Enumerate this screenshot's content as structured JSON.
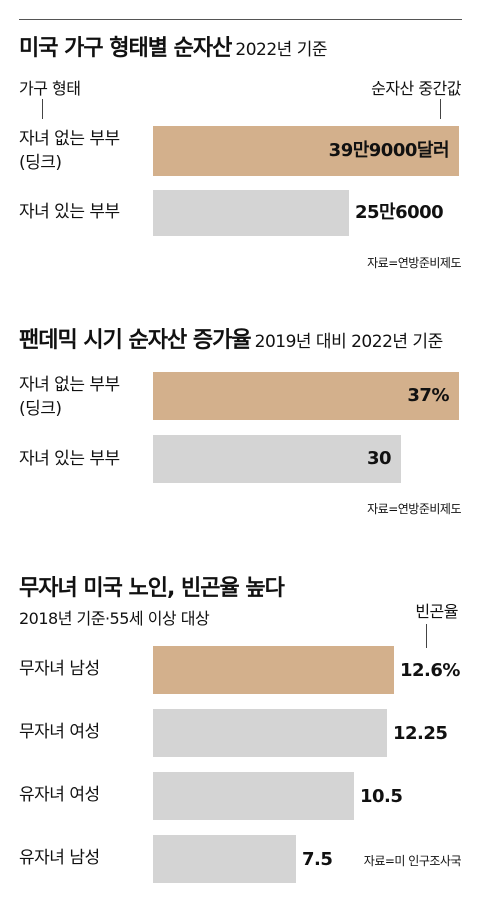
{
  "chart_data": [
    {
      "type": "bar",
      "title": "미국 가구 형태별 순자산",
      "subtitle": "2022년 기준",
      "category_header": "가구 형태",
      "value_header": "순자산 중간값",
      "categories": [
        "자녀 없는 부부\n(딩크)",
        "자녀 있는 부부"
      ],
      "values": [
        399000,
        256000
      ],
      "value_labels": [
        "39만9000달러",
        "25만6000"
      ],
      "highlight_color": "#d3b08c",
      "base_color": "#d4d4d4",
      "source": "자료=연방준비제도"
    },
    {
      "type": "bar",
      "title": "팬데믹 시기 순자산 증가율",
      "subtitle": "2019년 대비 2022년 기준",
      "categories": [
        "자녀 없는 부부\n(딩크)",
        "자녀 있는 부부"
      ],
      "values": [
        37,
        30
      ],
      "value_labels": [
        "37%",
        "30"
      ],
      "highlight_color": "#d3b08c",
      "base_color": "#d4d4d4",
      "source": "자료=연방준비제도"
    },
    {
      "type": "bar",
      "title": "무자녀 미국 노인, 빈곤율 높다",
      "subtitle": "2018년 기준·55세 이상 대상",
      "value_header": "빈곤율",
      "categories": [
        "무자녀 남성",
        "무자녀 여성",
        "유자녀 여성",
        "유자녀 남성"
      ],
      "values": [
        12.6,
        12.25,
        10.5,
        7.5
      ],
      "value_labels": [
        "12.6%",
        "12.25",
        "10.5",
        "7.5"
      ],
      "highlight_color": "#d3b08c",
      "base_color": "#d4d4d4",
      "source": "자료=미 인구조사국"
    }
  ]
}
